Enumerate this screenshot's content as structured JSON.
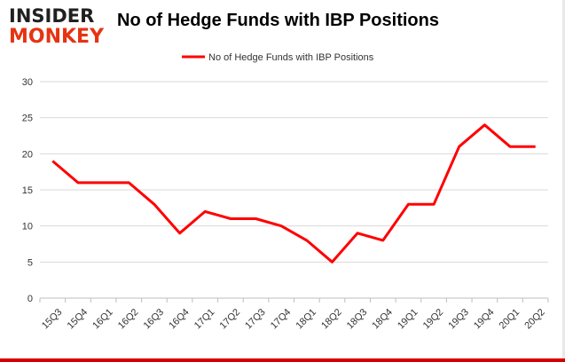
{
  "logo": {
    "word_1": "INSIDER",
    "word_2": "MONKEY"
  },
  "chart_data": {
    "type": "line",
    "title": "No of Hedge Funds with IBP Positions",
    "xlabel": "",
    "ylabel": "",
    "categories": [
      "15Q3",
      "15Q4",
      "16Q1",
      "16Q2",
      "16Q3",
      "16Q4",
      "17Q1",
      "17Q2",
      "17Q3",
      "17Q4",
      "18Q1",
      "18Q2",
      "18Q3",
      "18Q4",
      "19Q1",
      "19Q2",
      "19Q3",
      "19Q4",
      "20Q1",
      "20Q2"
    ],
    "series": [
      {
        "name": "No of Hedge Funds with IBP Positions",
        "values": [
          19,
          16,
          16,
          16,
          13,
          9,
          12,
          11,
          11,
          10,
          8,
          5,
          9,
          8,
          13,
          13,
          21,
          24,
          21,
          21
        ],
        "color": "#ff0000"
      }
    ],
    "ylim": [
      0,
      30
    ],
    "yticks": [
      0,
      5,
      10,
      15,
      20,
      25,
      30
    ],
    "grid": "horizontal",
    "legend": "top-center"
  }
}
